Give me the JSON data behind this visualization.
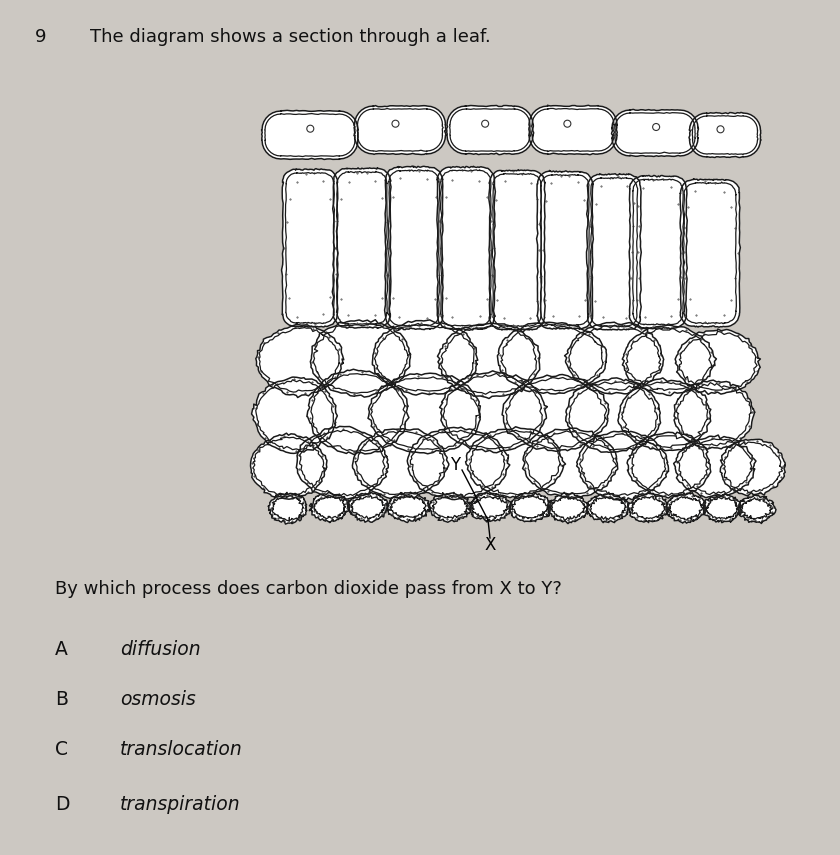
{
  "bg_color": "#ccc8c2",
  "question_number": "9",
  "title": "The diagram shows a section through a leaf.",
  "question": "By which process does carbon dioxide pass from X to Y?",
  "options": [
    {
      "letter": "A",
      "text": "diffusion"
    },
    {
      "letter": "B",
      "text": "osmosis"
    },
    {
      "letter": "C",
      "text": "translocation"
    },
    {
      "letter": "D",
      "text": "transpiration"
    }
  ],
  "label_X": "X",
  "label_Y": "Y"
}
